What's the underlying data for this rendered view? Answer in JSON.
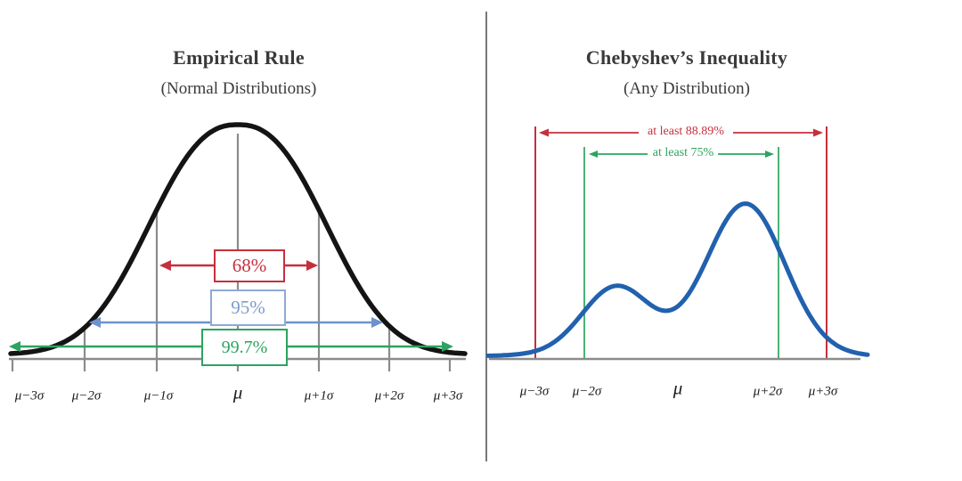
{
  "left_panel": {
    "title": "Empirical Rule",
    "subtitle": "(Normal Distributions)",
    "distribution": "normal bell curve",
    "intervals": [
      {
        "label": "68%",
        "covers": "μ−1σ to μ+1σ",
        "color": "#c5303c"
      },
      {
        "label": "95%",
        "covers": "μ−2σ to μ+2σ",
        "color": "#7d9ccb"
      },
      {
        "label": "99.7%",
        "covers": "μ−3σ to μ+3σ",
        "color": "#2ca45f"
      }
    ],
    "axis_labels": [
      "μ−3σ",
      "μ−2σ",
      "μ−1σ",
      "μ",
      "μ+1σ",
      "μ+2σ",
      "μ+3σ"
    ]
  },
  "right_panel": {
    "title": "Chebyshev’s Inequality",
    "subtitle": "(Any Distribution)",
    "distribution": "bimodal curve",
    "intervals": [
      {
        "label": "at least 88.89%",
        "covers": "μ−3σ to μ+3σ",
        "color": "#c5303c"
      },
      {
        "label": "at least 75%",
        "covers": "μ−2σ to μ+2σ",
        "color": "#2ca45f"
      }
    ],
    "axis_labels": [
      "μ−3σ",
      "μ−2σ",
      "μ",
      "μ+2σ",
      "μ+3σ"
    ]
  },
  "colors": {
    "red": "#c5303c",
    "green": "#2ca45f",
    "blue_arrow": "#6e93cc",
    "blue_box_border": "#8fa9d4",
    "blue_text": "#7d9ccb",
    "curve_blue": "#2161ae",
    "curve_black": "#141414",
    "gray": "#8b8b8b",
    "divider": "#555555",
    "text_dark": "#3a3a3a"
  }
}
